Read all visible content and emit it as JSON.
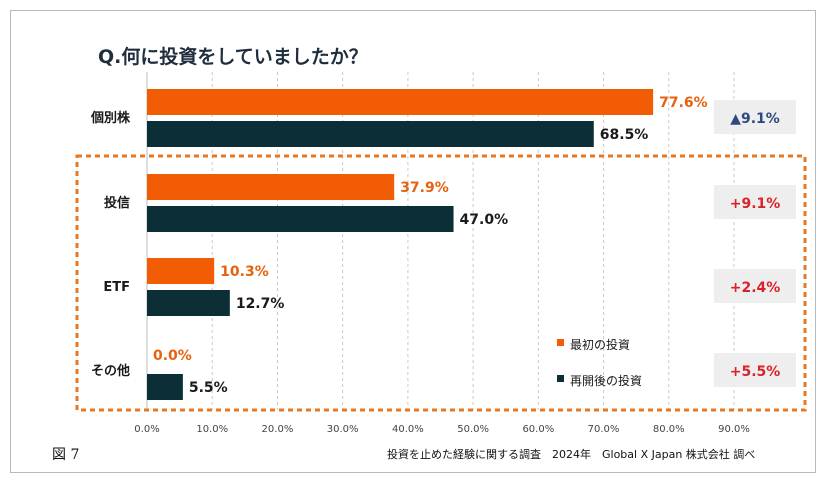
{
  "title": "Q.何に投資をしていましたか？",
  "figure_label": "図 7",
  "source": "投資を止めた経験に関する調査　2024年　Global X Japan 株式会社 調べ",
  "colors": {
    "first": "#F25C05",
    "after": "#0B2E37",
    "first_text": "#E8610E",
    "neg_text": "#2E4A7D",
    "pos_text": "#D9222A",
    "box_bg": "#EEEEEE",
    "highlight": "#E87722"
  },
  "chart_data": {
    "type": "bar",
    "orientation": "horizontal",
    "title": "Q.何に投資をしていましたか？",
    "categories": [
      "個別株",
      "投信",
      "ETF",
      "その他"
    ],
    "series": [
      {
        "name": "最初の投資",
        "values": [
          77.6,
          37.9,
          10.3,
          0.0
        ],
        "labels": [
          "77.6%",
          "37.9%",
          "10.3%",
          "0.0%"
        ]
      },
      {
        "name": "再開後の投資",
        "values": [
          68.5,
          47.0,
          12.7,
          5.5
        ],
        "labels": [
          "68.5%",
          "47.0%",
          "12.7%",
          "5.5%"
        ]
      }
    ],
    "changes": [
      "▲9.1%",
      "+9.1%",
      "+2.4%",
      "+5.5%"
    ],
    "change_direction": [
      "down",
      "up",
      "up",
      "up"
    ],
    "xlim": [
      0,
      90
    ],
    "xticks": [
      "0.0%",
      "10.0%",
      "20.0%",
      "30.0%",
      "40.0%",
      "50.0%",
      "60.0%",
      "70.0%",
      "80.0%",
      "90.0%"
    ],
    "grid": "vertical-dashed",
    "legend_position": "bottom-right",
    "highlighted_categories": [
      "投信",
      "ETF",
      "その他"
    ]
  }
}
